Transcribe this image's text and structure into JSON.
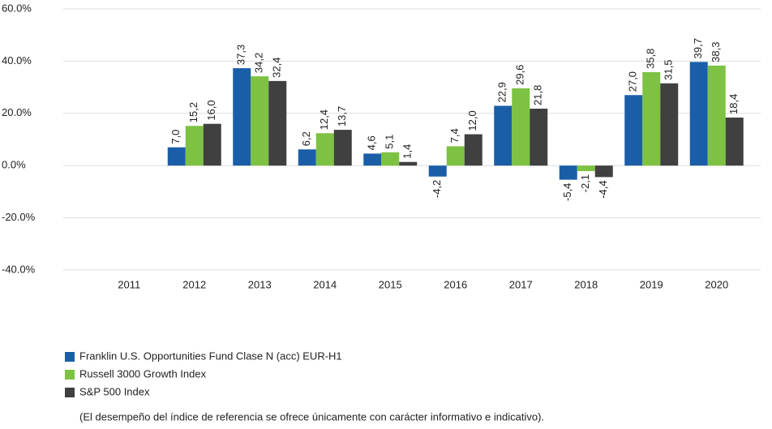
{
  "chart_data": {
    "type": "bar",
    "categories": [
      "2011",
      "2012",
      "2013",
      "2014",
      "2015",
      "2016",
      "2017",
      "2018",
      "2019",
      "2020"
    ],
    "series": [
      {
        "name": "Franklin U.S. Opportunities Fund Clase N (acc) EUR-H1",
        "color": "#1a5ea8",
        "values": [
          null,
          7.0,
          37.3,
          6.2,
          4.6,
          -4.2,
          22.9,
          -5.4,
          27.0,
          39.7
        ],
        "value_labels": [
          null,
          "7,0",
          "37,3",
          "6,2",
          "4,6",
          "-4,2",
          "22,9",
          "-5,4",
          "27,0",
          "39,7"
        ]
      },
      {
        "name": "Russell 3000 Growth Index",
        "color": "#7dc242",
        "values": [
          null,
          15.2,
          34.2,
          12.4,
          5.1,
          7.4,
          29.6,
          -2.1,
          35.8,
          38.3
        ],
        "value_labels": [
          null,
          "15,2",
          "34,2",
          "12,4",
          "5,1",
          "7,4",
          "29,6",
          "-2,1",
          "35,8",
          "38,3"
        ]
      },
      {
        "name": "S&P 500 Index",
        "color": "#404040",
        "values": [
          null,
          16.0,
          32.4,
          13.7,
          1.4,
          12.0,
          21.8,
          -4.4,
          31.5,
          18.4
        ],
        "value_labels": [
          null,
          "16,0",
          "32,4",
          "13,7",
          "1,4",
          "12,0",
          "21,8",
          "-4,4",
          "31,5",
          "18,4"
        ]
      }
    ],
    "ylim": [
      -40,
      60
    ],
    "yticks": [
      {
        "value": -40,
        "label": "-40.0%"
      },
      {
        "value": -20,
        "label": "-20.0%"
      },
      {
        "value": 0,
        "label": "0.0%"
      },
      {
        "value": 20,
        "label": "20.0%"
      },
      {
        "value": 40,
        "label": "40.0%"
      },
      {
        "value": 60,
        "label": "60.0%"
      }
    ],
    "grid": true,
    "legend": "bottom-left",
    "annotations": [
      "(El desempeño del índice de referencia se ofrece únicamente con carácter informativo e indicativo)."
    ]
  }
}
